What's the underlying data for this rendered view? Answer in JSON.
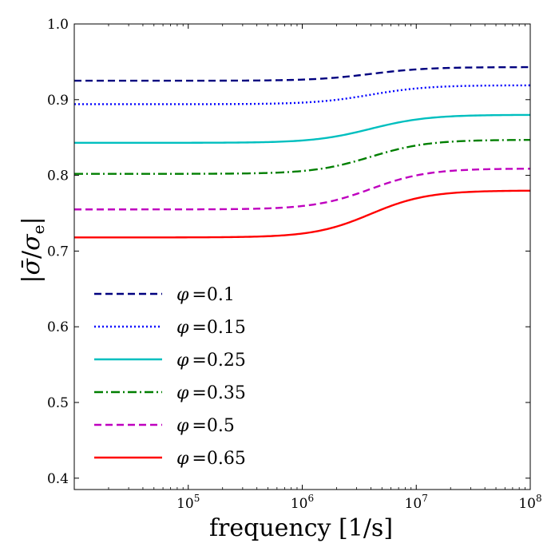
{
  "chart_data": {
    "type": "line",
    "title": "",
    "xlabel": "frequency [1/s]",
    "ylabel": "|σ̄/σ_e|",
    "ylabel_parts": {
      "open": "|",
      "sigma_bar": "σ̄",
      "slash": "/",
      "sigma": "σ",
      "sub": "e",
      "close": "|"
    },
    "x_scale": "log",
    "xlim_log10": [
      4.0,
      8.0
    ],
    "ylim": [
      0.385,
      1.0
    ],
    "x_ticks": [
      {
        "base": "10",
        "exp": "5",
        "log10": 5
      },
      {
        "base": "10",
        "exp": "6",
        "log10": 6
      },
      {
        "base": "10",
        "exp": "7",
        "log10": 7
      },
      {
        "base": "10",
        "exp": "8",
        "log10": 8
      }
    ],
    "y_ticks": [
      {
        "label": "0.4",
        "value": 0.4
      },
      {
        "label": "0.5",
        "value": 0.5
      },
      {
        "label": "0.6",
        "value": 0.6
      },
      {
        "label": "0.7",
        "value": 0.7
      },
      {
        "label": "0.8",
        "value": 0.8
      },
      {
        "label": "0.9",
        "value": 0.9
      },
      {
        "label": "1.0",
        "value": 1.0
      }
    ],
    "grid": false,
    "legend_position": "lower-left",
    "transition": {
      "center_log10": 6.6,
      "width_log10": 0.25
    },
    "series": [
      {
        "name": "φ =0.1",
        "symbol": "φ",
        "label": "=0.1",
        "low": 0.925,
        "high": 0.943,
        "color": "#00007f",
        "dash": "9,5"
      },
      {
        "name": "φ =0.15",
        "symbol": "φ",
        "label": "=0.15",
        "low": 0.894,
        "high": 0.919,
        "color": "#0000ff",
        "dash": "2,3"
      },
      {
        "name": "φ =0.25",
        "symbol": "φ",
        "label": "=0.25",
        "low": 0.843,
        "high": 0.88,
        "color": "#00bfbf",
        "dash": ""
      },
      {
        "name": "φ =0.35",
        "symbol": "φ",
        "label": "=0.35",
        "low": 0.802,
        "high": 0.847,
        "color": "#007f00",
        "dash": "11,4,2,4"
      },
      {
        "name": "φ =0.5",
        "symbol": "φ",
        "label": "=0.5",
        "low": 0.755,
        "high": 0.809,
        "color": "#bf00bf",
        "dash": "9,5"
      },
      {
        "name": "φ =0.65",
        "symbol": "φ",
        "label": "=0.65",
        "low": 0.718,
        "high": 0.78,
        "color": "#ff0000",
        "dash": ""
      }
    ]
  }
}
